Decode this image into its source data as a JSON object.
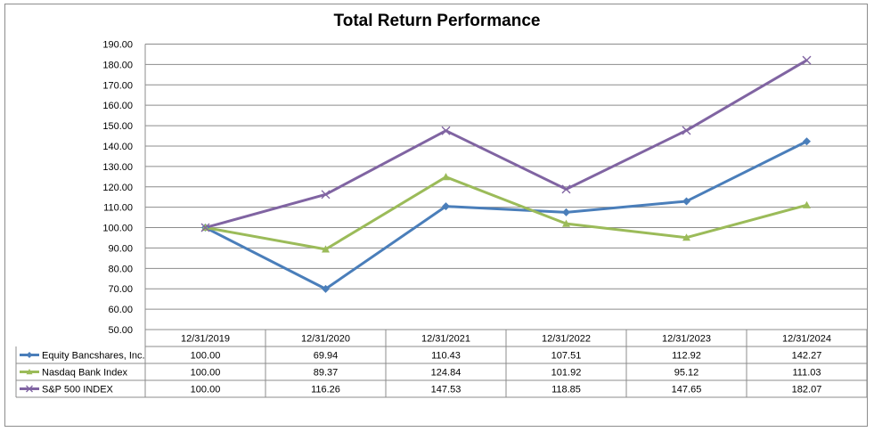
{
  "chart_data": {
    "type": "line",
    "title": "Total Return Performance",
    "categories": [
      "12/31/2019",
      "12/31/2020",
      "12/31/2021",
      "12/31/2022",
      "12/31/2023",
      "12/31/2024"
    ],
    "ylim": [
      50,
      190
    ],
    "ystep": 10,
    "yticks": [
      "50.00",
      "60.00",
      "70.00",
      "80.00",
      "90.00",
      "100.00",
      "110.00",
      "120.00",
      "130.00",
      "140.00",
      "150.00",
      "160.00",
      "170.00",
      "180.00",
      "190.00"
    ],
    "grid": true,
    "legend_placement": "data-table",
    "series": [
      {
        "name": "Equity Bancshares, Inc.",
        "color": "#4a7eba",
        "marker": "diamond",
        "values": [
          100.0,
          69.94,
          110.43,
          107.51,
          112.92,
          142.27
        ],
        "labels": [
          "100.00",
          "69.94",
          "110.43",
          "107.51",
          "112.92",
          "142.27"
        ]
      },
      {
        "name": "Nasdaq Bank Index",
        "color": "#9bbb59",
        "marker": "triangle",
        "values": [
          100.0,
          89.37,
          124.84,
          101.92,
          95.12,
          111.03
        ],
        "labels": [
          "100.00",
          "89.37",
          "124.84",
          "101.92",
          "95.12",
          "111.03"
        ]
      },
      {
        "name": "S&P 500 INDEX",
        "color": "#8064a2",
        "marker": "x",
        "values": [
          100.0,
          116.26,
          147.53,
          118.85,
          147.65,
          182.07
        ],
        "labels": [
          "100.00",
          "116.26",
          "147.53",
          "118.85",
          "147.65",
          "182.07"
        ]
      }
    ]
  }
}
